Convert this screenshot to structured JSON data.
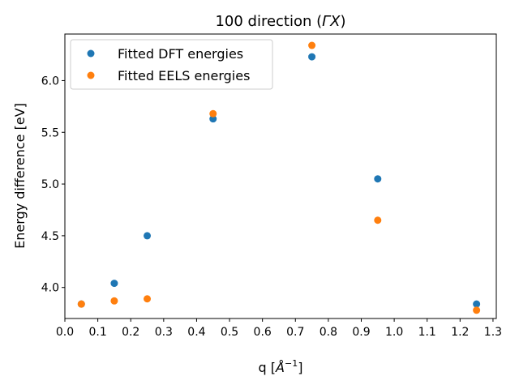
{
  "chart_data": {
    "type": "scatter",
    "title": "100 direction (ΓX)",
    "title_main": "100 direction (",
    "title_symbol": "ΓX",
    "title_close": ")",
    "xlabel": "q [Å⁻¹]",
    "xlabel_main": "q [",
    "xlabel_symbol": "Å",
    "xlabel_exp": "−1",
    "xlabel_close": "]",
    "ylabel": "Energy difference [eV]",
    "xlim": [
      0.0,
      1.31
    ],
    "ylim": [
      3.7,
      6.45
    ],
    "xticks": [
      "0.0",
      "0.1",
      "0.2",
      "0.3",
      "0.4",
      "0.5",
      "0.6",
      "0.7",
      "0.8",
      "0.9",
      "1.0",
      "1.1",
      "1.2",
      "1.3"
    ],
    "yticks": [
      "4.0",
      "4.5",
      "5.0",
      "5.5",
      "6.0"
    ],
    "grid": false,
    "legend_position": "top-left",
    "series": [
      {
        "name": "Fitted DFT energies",
        "color": "#1f77b4",
        "x": [
          0.05,
          0.15,
          0.25,
          0.45,
          0.75,
          0.95,
          1.25
        ],
        "y": [
          3.84,
          4.04,
          4.5,
          5.63,
          6.23,
          5.05,
          3.84
        ]
      },
      {
        "name": "Fitted EELS energies",
        "color": "#ff7f0e",
        "x": [
          0.05,
          0.15,
          0.25,
          0.45,
          0.75,
          0.95,
          1.25
        ],
        "y": [
          3.84,
          3.87,
          3.89,
          5.68,
          6.34,
          4.65,
          3.78
        ]
      }
    ]
  }
}
